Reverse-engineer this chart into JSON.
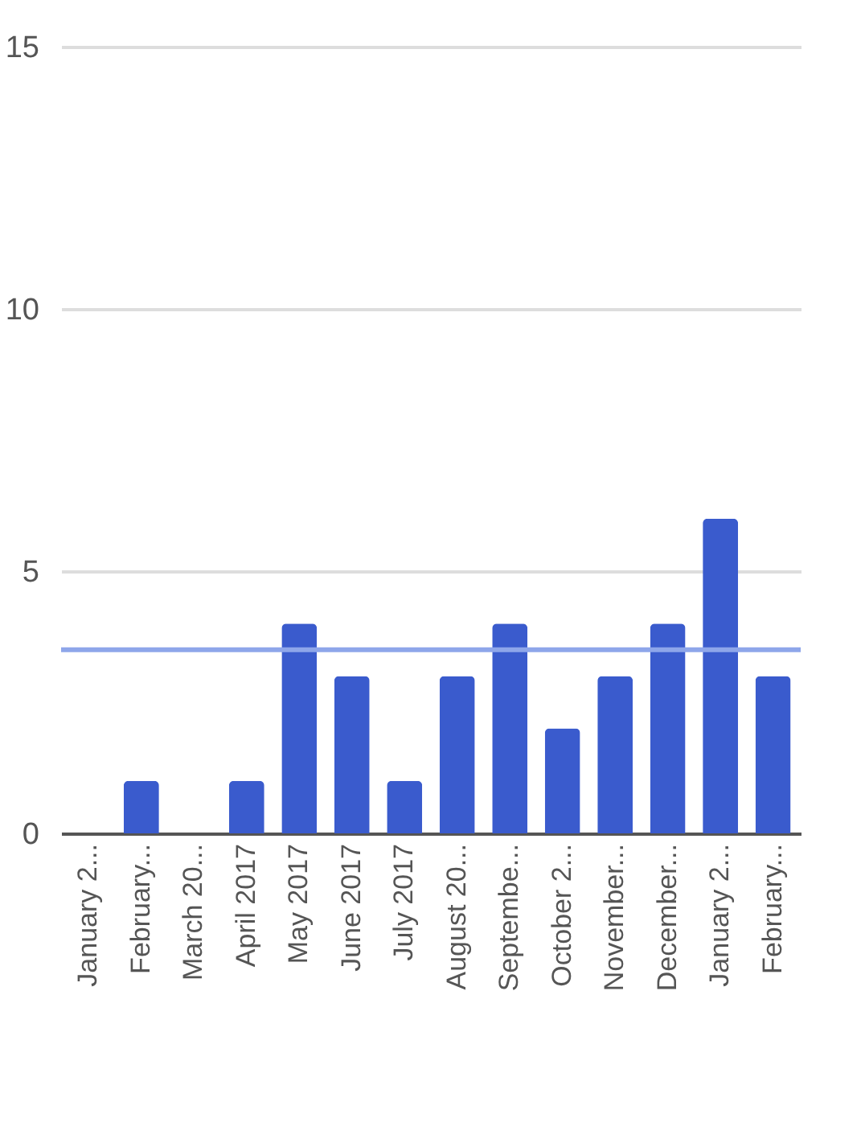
{
  "chart_data": {
    "type": "bar",
    "categories": [
      "January 2...",
      "February...",
      "March 20...",
      "April 2017",
      "May 2017",
      "June 2017",
      "July 2017",
      "August 20...",
      "Septembe...",
      "October 2...",
      "November...",
      "December...",
      "January 2...",
      "February..."
    ],
    "values": [
      0,
      1,
      0,
      1,
      4,
      3,
      1,
      3,
      4,
      2,
      3,
      4,
      6,
      3
    ],
    "color": "#3a5bcd",
    "ylim": [
      0,
      15
    ],
    "yticks": [
      0,
      5,
      10,
      15
    ],
    "grid": "y",
    "ref_lines": [
      {
        "axis": "y",
        "value": 3.5,
        "color": "#8ea6ea"
      }
    ]
  }
}
